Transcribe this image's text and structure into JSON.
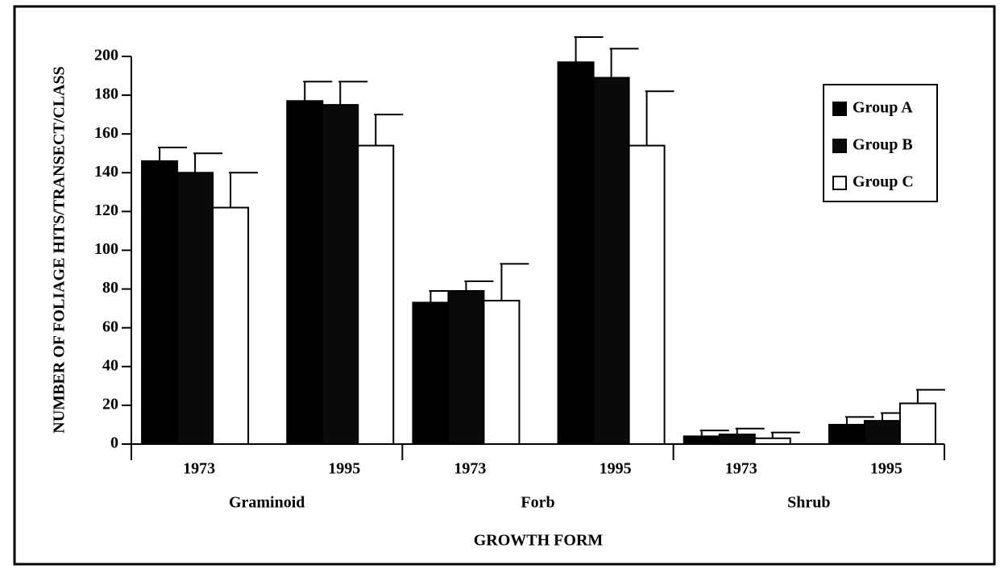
{
  "chart_data": {
    "type": "bar",
    "y_label": "NUMBER OF FOLIAGE HITS/TRANSECT/CLASS",
    "x_label": "GROWTH FORM",
    "categories": [
      "1973",
      "1995",
      "1973",
      "1995",
      "1973",
      "1995"
    ],
    "category_groups": [
      "Graminoid",
      "Forb",
      "Shrub"
    ],
    "series": [
      {
        "name": "Group A",
        "color": "#000000",
        "values": [
          146,
          177,
          73,
          197,
          4,
          10
        ],
        "errors": [
          7,
          10,
          6,
          13,
          3,
          4
        ]
      },
      {
        "name": "Group B",
        "color": "#0a0a0a",
        "values": [
          140,
          175,
          79,
          189,
          5,
          12
        ],
        "errors": [
          10,
          12,
          5,
          15,
          3,
          4
        ]
      },
      {
        "name": "Group C",
        "color": "#ffffff",
        "values": [
          122,
          154,
          74,
          154,
          3,
          21
        ],
        "errors": [
          18,
          16,
          19,
          28,
          3,
          7
        ]
      }
    ],
    "ylim": [
      0,
      200
    ],
    "yticks": [
      0,
      20,
      40,
      60,
      80,
      100,
      120,
      140,
      160,
      180,
      200
    ],
    "legend": "upper right"
  }
}
